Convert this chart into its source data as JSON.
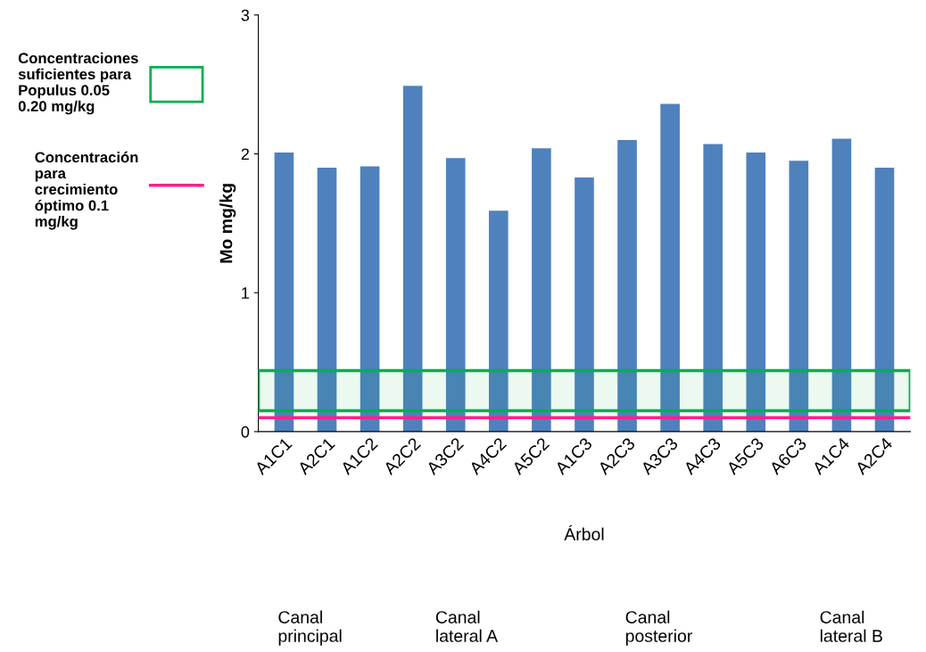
{
  "chart_data": {
    "type": "bar",
    "xlabel": "Árbol",
    "ylabel": "Mo mg/kg",
    "categories": [
      "A1C1",
      "A2C1",
      "A1C2",
      "A2C2",
      "A3C2",
      "A4C2",
      "A5C2",
      "A1C3",
      "A2C3",
      "A3C3",
      "A4C3",
      "A5C3",
      "A6C3",
      "A1C4",
      "A2C4"
    ],
    "values": [
      2.01,
      1.9,
      1.91,
      2.49,
      1.97,
      1.59,
      2.04,
      1.83,
      2.1,
      2.36,
      2.07,
      2.01,
      1.95,
      2.11,
      1.9
    ],
    "color": "#4f81bd",
    "ylim": [
      0,
      3
    ],
    "yticks": [
      0,
      1,
      2,
      3
    ],
    "grid": false,
    "legend": "left",
    "bands": [
      {
        "axis": "y",
        "from": 0.15,
        "to": 0.44,
        "color": "#00b050",
        "label": "Concentraciones\nsuficientes para\nPopulus 0.05\n0.20 mg/kg"
      }
    ],
    "ref_lines": [
      {
        "axis": "y",
        "value": 0.1,
        "color": "#ff1f8f",
        "label": "Concentración\npara\ncrecimiento\nóptimo 0.1\nmg/kg"
      }
    ],
    "annotations": [
      "Canal\nprincipal",
      "Canal\nlateral A",
      "Canal\nposterior",
      "Canal\nlateral B"
    ]
  }
}
